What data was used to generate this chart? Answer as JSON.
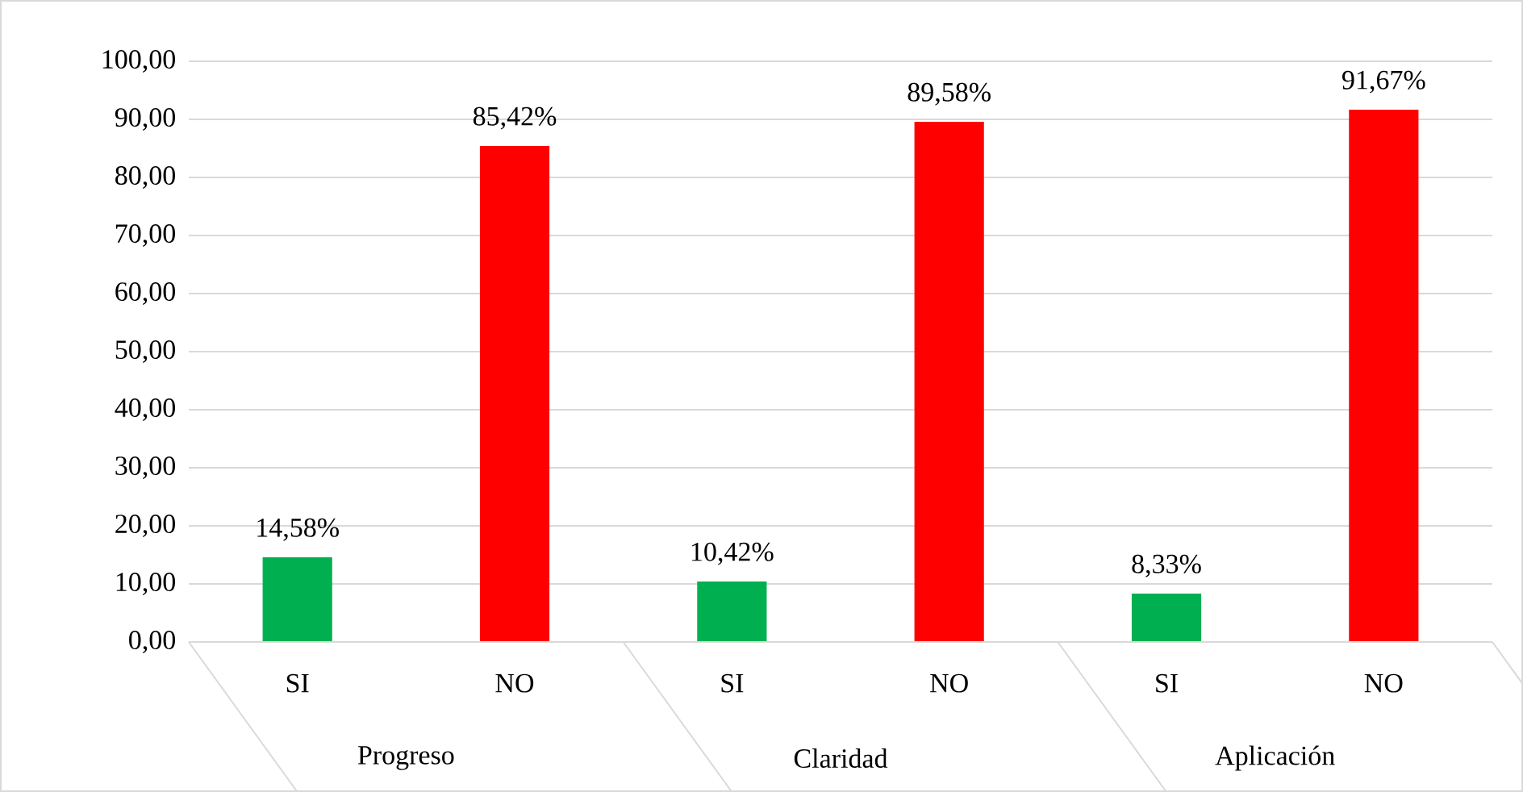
{
  "chart_data": {
    "type": "bar",
    "categories": [
      "SI",
      "NO",
      "SI",
      "NO",
      "SI",
      "NO"
    ],
    "values": [
      14.58,
      85.42,
      10.42,
      89.58,
      8.33,
      91.67
    ],
    "colors": [
      "#00b050",
      "#ff0000",
      "#00b050",
      "#ff0000",
      "#00b050",
      "#ff0000"
    ],
    "value_labels": [
      "14,58%",
      "85,42%",
      "10,42%",
      "89,58%",
      "8,33%",
      "91,67%"
    ],
    "ylim": [
      0,
      100
    ],
    "yticks": [
      {
        "value": 0,
        "label": "0,00"
      },
      {
        "value": 10,
        "label": "10,00"
      },
      {
        "value": 20,
        "label": "20,00"
      },
      {
        "value": 30,
        "label": "30,00"
      },
      {
        "value": 40,
        "label": "40,00"
      },
      {
        "value": 50,
        "label": "50,00"
      },
      {
        "value": 60,
        "label": "60,00"
      },
      {
        "value": 70,
        "label": "70,00"
      },
      {
        "value": 80,
        "label": "80,00"
      },
      {
        "value": 90,
        "label": "90,00"
      },
      {
        "value": 100,
        "label": "100,00"
      }
    ],
    "grid": "y",
    "annotations": [
      "Progreso",
      "Claridad",
      "Aplicación"
    ]
  }
}
